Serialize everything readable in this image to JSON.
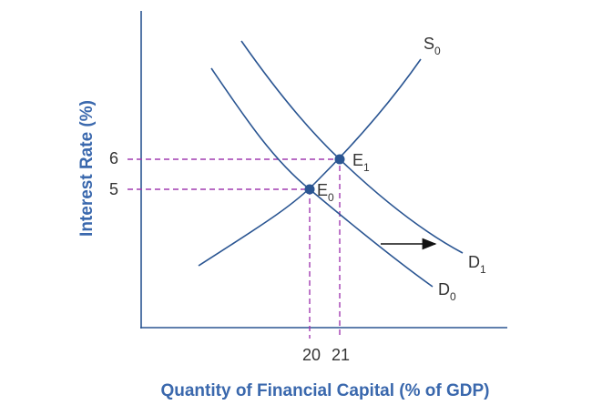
{
  "axes": {
    "y_label": "Interest Rate (%)",
    "x_label": "Quantity of Financial Capital (% of GDP)",
    "y_ticks": [
      6,
      5
    ],
    "x_ticks": [
      20,
      21
    ]
  },
  "curves": [
    {
      "letter": "S",
      "subscript": "0"
    },
    {
      "letter": "D",
      "subscript": "1"
    },
    {
      "letter": "D",
      "subscript": "0"
    }
  ],
  "points": [
    {
      "letter": "E",
      "subscript": "1"
    },
    {
      "letter": "E",
      "subscript": "0"
    }
  ]
}
